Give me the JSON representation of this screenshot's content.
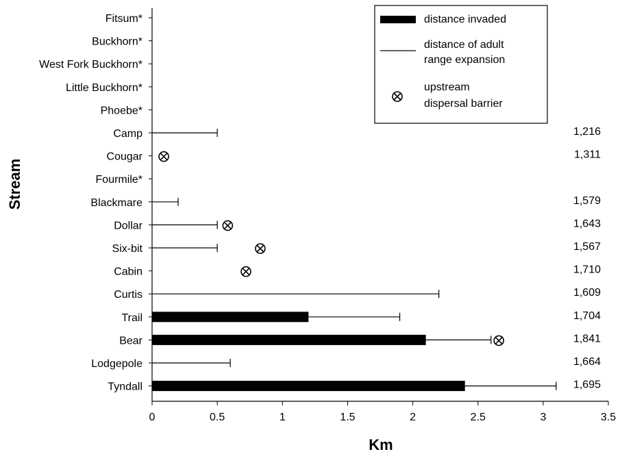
{
  "chart_data": {
    "type": "bar",
    "orientation": "horizontal",
    "title": "",
    "xlabel": "Km",
    "ylabel": "Stream",
    "xlim": [
      0,
      3.5
    ],
    "xticks": [
      "0",
      "0.5",
      "1",
      "1.5",
      "2",
      "2.5",
      "3",
      "3.5"
    ],
    "grid": false,
    "legend_position": "top-right",
    "categories": [
      "Fitsum*",
      "Buckhorn*",
      "West Fork Buckhorn*",
      "Little Buckhorn*",
      "Phoebe*",
      "Camp",
      "Cougar",
      "Fourmile*",
      "Blackmare",
      "Dollar",
      "Six-bit",
      "Cabin",
      "Curtis",
      "Trail",
      "Bear",
      "Lodgepole",
      "Tyndall"
    ],
    "distance_invaded": [
      0,
      0,
      0,
      0,
      0,
      0,
      0,
      0,
      0,
      0,
      0,
      0,
      0,
      1.2,
      2.1,
      0,
      2.4
    ],
    "adult_range_expansion": [
      0,
      0,
      0,
      0,
      0,
      0.5,
      0,
      0,
      0.2,
      0.5,
      0.5,
      0,
      2.2,
      0.7,
      0.5,
      0.6,
      0.7
    ],
    "dispersal_barrier": [
      null,
      null,
      null,
      null,
      null,
      null,
      0.09,
      null,
      null,
      0.58,
      0.83,
      0.72,
      null,
      null,
      2.66,
      null,
      null
    ],
    "elevation_labels": [
      "",
      "",
      "",
      "",
      "",
      "1,216",
      "1,311",
      "",
      "1,579",
      "1,643",
      "1,567",
      "1,710",
      "1,609",
      "1,704",
      "1,841",
      "1,664",
      "1,695"
    ],
    "legend": {
      "bar": "distance invaded",
      "line_1": "distance of adult",
      "line_2": "range expansion",
      "barrier_1": "upstream",
      "barrier_2": "dispersal barrier"
    },
    "colors": {
      "bar": "#000000",
      "line": "#000000"
    }
  }
}
